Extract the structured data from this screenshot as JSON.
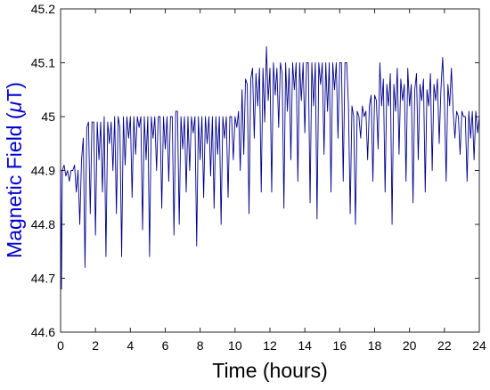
{
  "chart_data": {
    "type": "line",
    "title": "",
    "xlabel": "Time (hours)",
    "ylabel": "Magnetic Field (",
    "ylabel_mu": "μ",
    "ylabel_unit": "T)",
    "xlim": [
      0,
      24
    ],
    "ylim": [
      44.6,
      45.2
    ],
    "xticks": [
      0,
      2,
      4,
      6,
      8,
      10,
      12,
      14,
      16,
      18,
      20,
      22,
      24
    ],
    "xtick_labels": [
      "0",
      "2",
      "4",
      "6",
      "8",
      "10",
      "12",
      "14",
      "16",
      "18",
      "20",
      "22",
      "24"
    ],
    "yticks": [
      44.6,
      44.7,
      44.8,
      44.9,
      45.0,
      45.1,
      45.2
    ],
    "ytick_labels": [
      "44.6",
      "44.7",
      "44.8",
      "44.9",
      "45",
      "45.1",
      "45.2"
    ],
    "grid": false,
    "legend": "none",
    "series_color": "#00008B",
    "label_color": "#0000CC",
    "series": [
      {
        "values": [
          [
            0.0,
            44.9
          ],
          [
            0.05,
            44.68
          ],
          [
            0.1,
            44.9
          ],
          [
            0.2,
            44.91
          ],
          [
            0.3,
            44.89
          ],
          [
            0.4,
            44.9
          ],
          [
            0.5,
            44.88
          ],
          [
            0.6,
            44.9
          ],
          [
            0.7,
            44.9
          ],
          [
            0.8,
            44.91
          ],
          [
            0.9,
            44.86
          ],
          [
            1.0,
            44.9
          ],
          [
            1.1,
            44.8
          ],
          [
            1.2,
            44.92
          ],
          [
            1.3,
            44.96
          ],
          [
            1.4,
            44.72
          ],
          [
            1.5,
            44.98
          ],
          [
            1.6,
            44.99
          ],
          [
            1.7,
            44.82
          ],
          [
            1.8,
            44.99
          ],
          [
            1.9,
            44.99
          ],
          [
            2.0,
            44.78
          ],
          [
            2.1,
            44.99
          ],
          [
            2.2,
            44.92
          ],
          [
            2.3,
            44.99
          ],
          [
            2.4,
            44.86
          ],
          [
            2.5,
            45.0
          ],
          [
            2.6,
            44.74
          ],
          [
            2.7,
            44.99
          ],
          [
            2.8,
            44.95
          ],
          [
            2.9,
            44.99
          ],
          [
            3.0,
            44.9
          ],
          [
            3.1,
            45.0
          ],
          [
            3.2,
            44.82
          ],
          [
            3.3,
            45.0
          ],
          [
            3.4,
            44.98
          ],
          [
            3.5,
            44.74
          ],
          [
            3.6,
            45.0
          ],
          [
            3.7,
            44.91
          ],
          [
            3.8,
            45.0
          ],
          [
            3.9,
            44.96
          ],
          [
            4.0,
            45.0
          ],
          [
            4.1,
            44.85
          ],
          [
            4.2,
            45.0
          ],
          [
            4.3,
            44.93
          ],
          [
            4.4,
            45.0
          ],
          [
            4.5,
            44.98
          ],
          [
            4.6,
            45.0
          ],
          [
            4.7,
            44.79
          ],
          [
            4.8,
            45.0
          ],
          [
            4.9,
            44.92
          ],
          [
            5.0,
            45.0
          ],
          [
            5.1,
            44.74
          ],
          [
            5.2,
            45.0
          ],
          [
            5.3,
            44.96
          ],
          [
            5.4,
            45.0
          ],
          [
            5.5,
            44.9
          ],
          [
            5.6,
            45.0
          ],
          [
            5.7,
            45.0
          ],
          [
            5.8,
            44.83
          ],
          [
            5.9,
            45.0
          ],
          [
            6.0,
            44.94
          ],
          [
            6.1,
            45.0
          ],
          [
            6.2,
            44.88
          ],
          [
            6.3,
            45.0
          ],
          [
            6.4,
            45.0
          ],
          [
            6.5,
            44.78
          ],
          [
            6.6,
            45.01
          ],
          [
            6.7,
            45.01
          ],
          [
            6.8,
            44.8
          ],
          [
            6.9,
            45.0
          ],
          [
            7.0,
            44.94
          ],
          [
            7.1,
            45.0
          ],
          [
            7.2,
            44.86
          ],
          [
            7.3,
            45.0
          ],
          [
            7.4,
            44.9
          ],
          [
            7.5,
            45.0
          ],
          [
            7.6,
            44.97
          ],
          [
            7.7,
            45.0
          ],
          [
            7.8,
            44.76
          ],
          [
            7.9,
            45.0
          ],
          [
            8.0,
            44.92
          ],
          [
            8.1,
            45.0
          ],
          [
            8.2,
            44.85
          ],
          [
            8.3,
            45.0
          ],
          [
            8.4,
            44.95
          ],
          [
            8.5,
            45.0
          ],
          [
            8.6,
            44.89
          ],
          [
            8.7,
            45.0
          ],
          [
            8.8,
            44.83
          ],
          [
            8.9,
            45.0
          ],
          [
            9.0,
            44.93
          ],
          [
            9.1,
            45.0
          ],
          [
            9.2,
            44.8
          ],
          [
            9.3,
            45.0
          ],
          [
            9.4,
            44.96
          ],
          [
            9.5,
            45.0
          ],
          [
            9.6,
            44.85
          ],
          [
            9.7,
            45.0
          ],
          [
            9.8,
            45.0
          ],
          [
            9.9,
            44.92
          ],
          [
            10.0,
            45.0
          ],
          [
            10.1,
            44.98
          ],
          [
            10.2,
            45.01
          ],
          [
            10.3,
            44.9
          ],
          [
            10.4,
            45.05
          ],
          [
            10.5,
            44.93
          ],
          [
            10.6,
            45.07
          ],
          [
            10.7,
            45.06
          ],
          [
            10.8,
            44.82
          ],
          [
            10.9,
            45.07
          ],
          [
            11.0,
            45.09
          ],
          [
            11.1,
            44.96
          ],
          [
            11.2,
            45.08
          ],
          [
            11.3,
            45.02
          ],
          [
            11.4,
            45.09
          ],
          [
            11.5,
            44.86
          ],
          [
            11.6,
            45.09
          ],
          [
            11.7,
            44.99
          ],
          [
            11.8,
            45.13
          ],
          [
            11.9,
            45.03
          ],
          [
            12.0,
            45.09
          ],
          [
            12.1,
            44.86
          ],
          [
            12.2,
            45.1
          ],
          [
            12.3,
            45.04
          ],
          [
            12.4,
            45.09
          ],
          [
            12.5,
            44.98
          ],
          [
            12.6,
            45.1
          ],
          [
            12.7,
            45.08
          ],
          [
            12.8,
            44.83
          ],
          [
            12.9,
            45.1
          ],
          [
            13.0,
            45.01
          ],
          [
            13.1,
            45.09
          ],
          [
            13.2,
            44.92
          ],
          [
            13.3,
            45.1
          ],
          [
            13.4,
            45.05
          ],
          [
            13.5,
            45.1
          ],
          [
            13.6,
            44.88
          ],
          [
            13.7,
            45.1
          ],
          [
            13.8,
            45.03
          ],
          [
            13.9,
            45.1
          ],
          [
            14.0,
            44.97
          ],
          [
            14.1,
            45.1
          ],
          [
            14.2,
            45.1
          ],
          [
            14.3,
            44.84
          ],
          [
            14.4,
            45.1
          ],
          [
            14.5,
            45.02
          ],
          [
            14.6,
            45.1
          ],
          [
            14.7,
            44.81
          ],
          [
            14.8,
            45.1
          ],
          [
            14.9,
            45.06
          ],
          [
            15.0,
            45.1
          ],
          [
            15.1,
            44.93
          ],
          [
            15.2,
            45.1
          ],
          [
            15.3,
            45.01
          ],
          [
            15.4,
            45.1
          ],
          [
            15.5,
            44.86
          ],
          [
            15.6,
            45.1
          ],
          [
            15.7,
            45.05
          ],
          [
            15.8,
            45.1
          ],
          [
            15.9,
            44.96
          ],
          [
            16.0,
            45.1
          ],
          [
            16.1,
            45.1
          ],
          [
            16.2,
            44.88
          ],
          [
            16.3,
            45.1
          ],
          [
            16.4,
            45.1
          ],
          [
            16.5,
            45.02
          ],
          [
            16.6,
            44.82
          ],
          [
            16.7,
            45.02
          ],
          [
            16.8,
            45.0
          ],
          [
            16.9,
            44.8
          ],
          [
            17.0,
            45.01
          ],
          [
            17.1,
            45.0
          ],
          [
            17.2,
            44.96
          ],
          [
            17.3,
            45.02
          ],
          [
            17.4,
            45.0
          ],
          [
            17.5,
            45.01
          ],
          [
            17.6,
            44.92
          ],
          [
            17.7,
            45.02
          ],
          [
            17.8,
            45.04
          ],
          [
            17.9,
            44.88
          ],
          [
            18.0,
            45.04
          ],
          [
            18.1,
            45.03
          ],
          [
            18.2,
            44.94
          ],
          [
            18.3,
            45.1
          ],
          [
            18.4,
            45.02
          ],
          [
            18.5,
            45.07
          ],
          [
            18.6,
            44.86
          ],
          [
            18.7,
            45.06
          ],
          [
            18.8,
            45.02
          ],
          [
            18.9,
            45.08
          ],
          [
            19.0,
            44.8
          ],
          [
            19.1,
            45.06
          ],
          [
            19.2,
            45.01
          ],
          [
            19.3,
            45.09
          ],
          [
            19.4,
            44.93
          ],
          [
            19.5,
            45.07
          ],
          [
            19.6,
            45.03
          ],
          [
            19.7,
            45.06
          ],
          [
            19.8,
            44.88
          ],
          [
            19.9,
            45.09
          ],
          [
            20.0,
            45.02
          ],
          [
            20.1,
            45.06
          ],
          [
            20.2,
            44.84
          ],
          [
            20.3,
            45.05
          ],
          [
            20.4,
            45.08
          ],
          [
            20.5,
            44.92
          ],
          [
            20.6,
            45.06
          ],
          [
            20.7,
            45.03
          ],
          [
            20.8,
            45.07
          ],
          [
            20.9,
            44.86
          ],
          [
            21.0,
            45.05
          ],
          [
            21.1,
            45.02
          ],
          [
            21.2,
            45.08
          ],
          [
            21.3,
            44.9
          ],
          [
            21.4,
            45.06
          ],
          [
            21.5,
            45.03
          ],
          [
            21.6,
            45.07
          ],
          [
            21.7,
            44.95
          ],
          [
            21.8,
            45.05
          ],
          [
            21.9,
            45.11
          ],
          [
            22.0,
            45.03
          ],
          [
            22.1,
            44.88
          ],
          [
            22.2,
            45.06
          ],
          [
            22.3,
            45.02
          ],
          [
            22.4,
            45.09
          ],
          [
            22.5,
            45.01
          ],
          [
            22.6,
            44.96
          ],
          [
            22.7,
            45.01
          ],
          [
            22.8,
            45.0
          ],
          [
            22.9,
            44.93
          ],
          [
            23.0,
            45.01
          ],
          [
            23.1,
            45.0
          ],
          [
            23.2,
            45.0
          ],
          [
            23.3,
            44.88
          ],
          [
            23.4,
            45.01
          ],
          [
            23.5,
            44.96
          ],
          [
            23.6,
            45.01
          ],
          [
            23.7,
            44.92
          ],
          [
            23.8,
            45.01
          ],
          [
            23.9,
            44.97
          ],
          [
            24.0,
            45.0
          ]
        ]
      }
    ]
  }
}
